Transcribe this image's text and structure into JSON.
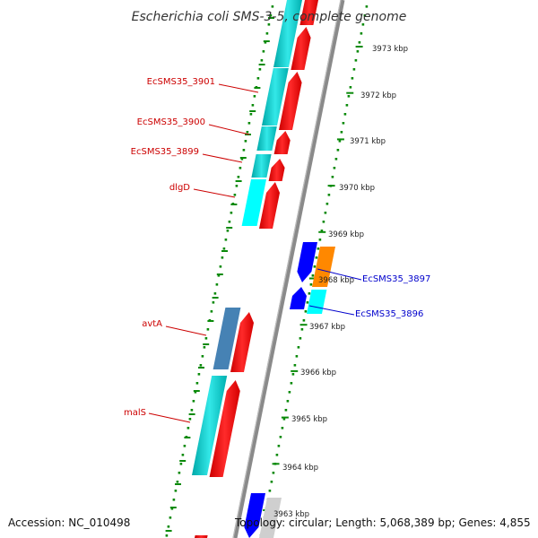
{
  "title": "Escherichia coli SMS-3-5, complete genome",
  "footer": {
    "accession": "Accession: NC_010498",
    "topology": "Topology: circular; Length: 5,068,389 bp; Genes: 4,855"
  },
  "kbp_labels": [
    "3973 kbp",
    "3972 kbp",
    "3971 kbp",
    "3970 kbp",
    "3969 kbp",
    "3968 kbp",
    "3967 kbp",
    "3966 kbp",
    "3965 kbp",
    "3964 kbp",
    "3963 kbp"
  ],
  "gene_labels": {
    "EcSMS35_3901": "EcSMS35_3901",
    "EcSMS35_3900": "EcSMS35_3900",
    "EcSMS35_3899": "EcSMS35_3899",
    "dlgD": "dlgD",
    "avtA": "avtA",
    "malS": "malS",
    "EcSMS35_3897": "EcSMS35_3897",
    "EcSMS35_3896": "EcSMS35_3896"
  },
  "colors": {
    "left_label": "#cc0000",
    "right_label": "#0000cc",
    "cds": "#ff0000",
    "gene_cyan": "#00cccc",
    "gene_blue": "#0000ff",
    "gene_orange": "#ff8800",
    "gene_steel": "#4682b4",
    "backbone": "#8a8a8a",
    "dots": "#0a8a0a"
  }
}
